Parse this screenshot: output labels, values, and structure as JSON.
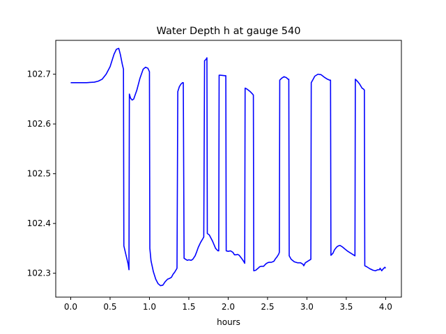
{
  "chart_data": {
    "type": "line",
    "title": "Water Depth h at gauge 540",
    "xlabel": "hours",
    "ylabel": "",
    "xlim": [
      -0.19,
      4.2
    ],
    "ylim": [
      102.252,
      102.768
    ],
    "xticks": [
      0.0,
      0.5,
      1.0,
      1.5,
      2.0,
      2.5,
      3.0,
      3.5,
      4.0
    ],
    "xtick_labels": [
      "0.0",
      "0.5",
      "1.0",
      "1.5",
      "2.0",
      "2.5",
      "3.0",
      "3.5",
      "4.0"
    ],
    "yticks": [
      102.3,
      102.4,
      102.5,
      102.6,
      102.7
    ],
    "ytick_labels": [
      "102.3",
      "102.4",
      "102.5",
      "102.6",
      "102.7"
    ],
    "grid": false,
    "series": [
      {
        "color": "#0000ff",
        "x": [
          0.0,
          0.1,
          0.2,
          0.3,
          0.35,
          0.4,
          0.45,
          0.5,
          0.55,
          0.58,
          0.61,
          0.63,
          0.655,
          0.67,
          0.675,
          0.7,
          0.73,
          0.74,
          0.745,
          0.76,
          0.78,
          0.8,
          0.84,
          0.88,
          0.92,
          0.95,
          0.98,
          1.0,
          1.005,
          1.02,
          1.05,
          1.08,
          1.11,
          1.14,
          1.17,
          1.2,
          1.23,
          1.26,
          1.28,
          1.3,
          1.32,
          1.35,
          1.36,
          1.38,
          1.4,
          1.42,
          1.43,
          1.44,
          1.46,
          1.48,
          1.5,
          1.53,
          1.55,
          1.58,
          1.6,
          1.62,
          1.65,
          1.68,
          1.69,
          1.7,
          1.72,
          1.73,
          1.735,
          1.76,
          1.8,
          1.84,
          1.87,
          1.88,
          1.885,
          1.9,
          1.96,
          1.97,
          1.975,
          2.0,
          2.03,
          2.06,
          2.08,
          2.1,
          2.12,
          2.14,
          2.17,
          2.2,
          2.21,
          2.215,
          2.24,
          2.28,
          2.31,
          2.32,
          2.325,
          2.35,
          2.38,
          2.4,
          2.42,
          2.45,
          2.48,
          2.5,
          2.52,
          2.55,
          2.58,
          2.6,
          2.62,
          2.64,
          2.65,
          2.655,
          2.68,
          2.71,
          2.74,
          2.76,
          2.77,
          2.775,
          2.8,
          2.84,
          2.88,
          2.92,
          2.95,
          2.96,
          2.98,
          3.0,
          3.03,
          3.05,
          3.055,
          3.08,
          3.1,
          3.14,
          3.18,
          3.22,
          3.26,
          3.29,
          3.3,
          3.305,
          3.33,
          3.35,
          3.38,
          3.4,
          3.42,
          3.45,
          3.48,
          3.52,
          3.56,
          3.6,
          3.61,
          3.615,
          3.64,
          3.67,
          3.7,
          3.72,
          3.73,
          3.735,
          3.76,
          3.8,
          3.84,
          3.87,
          3.9,
          3.92,
          3.93,
          3.95,
          3.97,
          3.99,
          4.0
        ],
        "y": [
          102.683,
          102.683,
          102.683,
          102.684,
          102.686,
          102.69,
          102.7,
          102.715,
          102.74,
          102.75,
          102.752,
          102.74,
          102.72,
          102.71,
          102.355,
          102.338,
          102.318,
          102.307,
          102.66,
          102.652,
          102.648,
          102.65,
          102.668,
          102.692,
          102.71,
          102.714,
          102.712,
          102.705,
          102.35,
          102.325,
          102.303,
          102.288,
          102.279,
          102.275,
          102.276,
          102.283,
          102.288,
          102.29,
          102.292,
          102.298,
          102.302,
          102.31,
          102.665,
          102.675,
          102.68,
          102.683,
          102.683,
          102.33,
          102.328,
          102.326,
          102.327,
          102.326,
          102.328,
          102.335,
          102.343,
          102.352,
          102.362,
          102.37,
          102.373,
          102.727,
          102.73,
          102.733,
          102.38,
          102.377,
          102.365,
          102.35,
          102.345,
          102.345,
          102.698,
          102.698,
          102.697,
          102.697,
          102.345,
          102.344,
          102.345,
          102.342,
          102.337,
          102.337,
          102.338,
          102.336,
          102.33,
          102.323,
          102.32,
          102.672,
          102.67,
          102.665,
          102.66,
          102.658,
          102.305,
          102.306,
          102.31,
          102.313,
          102.314,
          102.314,
          102.319,
          102.321,
          102.322,
          102.322,
          102.324,
          102.329,
          102.333,
          102.338,
          102.342,
          102.688,
          102.692,
          102.695,
          102.693,
          102.69,
          102.69,
          102.335,
          102.328,
          102.323,
          102.321,
          102.321,
          102.318,
          102.315,
          102.321,
          102.323,
          102.326,
          102.328,
          102.683,
          102.69,
          102.696,
          102.7,
          102.699,
          102.694,
          102.69,
          102.688,
          102.688,
          102.336,
          102.34,
          102.347,
          102.353,
          102.355,
          102.356,
          102.353,
          102.349,
          102.344,
          102.34,
          102.336,
          102.335,
          102.69,
          102.686,
          102.68,
          102.672,
          102.67,
          102.668,
          102.315,
          102.313,
          102.309,
          102.306,
          102.305,
          102.307,
          102.307,
          102.31,
          102.305,
          102.309,
          102.312,
          102.31
        ]
      }
    ]
  }
}
